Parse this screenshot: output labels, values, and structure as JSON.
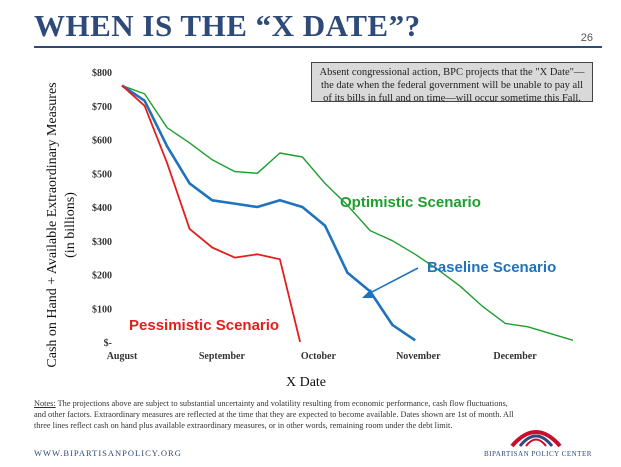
{
  "header": {
    "title": "WHEN IS THE “X DATE”?",
    "page_number": "26"
  },
  "callout": {
    "text": "Absent congressional action, BPC projects that the \"X Date\"—the date when the federal government will be unable to pay all of its bills in full and on time—will occur sometime this Fall."
  },
  "notes": {
    "label": "Notes:",
    "text": " The projections above are subject to substantial uncertainty and volatility resulting from economic performance, cash flow fluctuations, and other factors. Extraordinary measures are reflected at the time that they are expected to become available. Dates shown are 1st of month. All three lines reflect cash on hand plus available extraordinary measures, or in other words, remaining room under the debt limit."
  },
  "footer": {
    "website": "WWW.BIPARTISANPOLICY.ORG",
    "org_name": "BIPARTISAN POLICY CENTER",
    "logo_icon": "bpc-arc-logo",
    "logo_colors": [
      "#c8102e",
      "#2e4a78"
    ]
  },
  "chart_data": {
    "type": "line",
    "xlabel": "X Date",
    "ylabel_line1": "Cash on Hand + Available Extraordinary Measures",
    "ylabel_line2": "(in billions)",
    "x_tick_labels": [
      "August",
      "September",
      "October",
      "November",
      "December"
    ],
    "x_tick_weeks": [
      0,
      4.43,
      8.71,
      13.14,
      17.43
    ],
    "y_ticks": [
      0,
      100,
      200,
      300,
      400,
      500,
      600,
      700,
      800
    ],
    "y_tick_labels": [
      "$-",
      "$100",
      "$200",
      "$300",
      "$400",
      "$500",
      "$600",
      "$700",
      "$800"
    ],
    "ylim": [
      0,
      800
    ],
    "xlim_weeks": [
      0,
      20
    ],
    "grid": false,
    "series": [
      {
        "name": "Optimistic Scenario",
        "color": "#1e9e2e",
        "x_weeks": [
          0,
          1,
          2,
          3,
          4,
          5,
          6,
          7,
          8,
          9,
          10,
          11,
          12,
          13,
          14,
          15,
          16,
          17,
          18,
          19,
          20
        ],
        "values": [
          760,
          735,
          635,
          590,
          540,
          505,
          500,
          560,
          548,
          470,
          405,
          330,
          300,
          260,
          215,
          165,
          105,
          55,
          45,
          25,
          5
        ]
      },
      {
        "name": "Baseline Scenario",
        "color": "#1f73bd",
        "x_weeks": [
          0,
          1,
          2,
          3,
          4,
          5,
          6,
          7,
          8,
          9,
          10,
          11,
          12,
          13
        ],
        "values": [
          760,
          715,
          580,
          470,
          420,
          410,
          400,
          420,
          400,
          345,
          205,
          150,
          50,
          5
        ]
      },
      {
        "name": "Pessimistic Scenario",
        "color": "#e41e1e",
        "x_weeks": [
          0,
          1,
          2,
          3,
          4,
          5,
          6,
          7,
          7.9
        ],
        "values": [
          760,
          700,
          530,
          335,
          280,
          250,
          260,
          245,
          0
        ]
      }
    ]
  }
}
